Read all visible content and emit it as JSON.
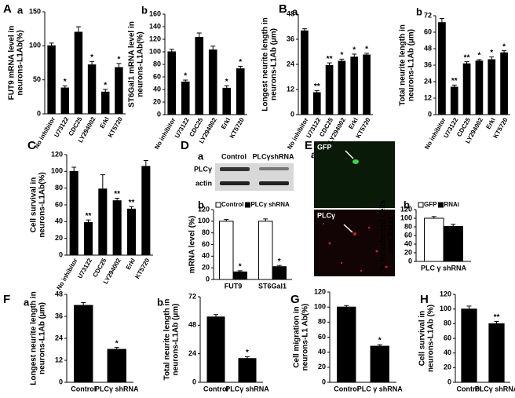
{
  "labels": [
    "A",
    "B",
    "C",
    "D",
    "E",
    "F",
    "G",
    "H"
  ],
  "blot": {
    "panel": "a",
    "columns": [
      "Control",
      "PLCγshRNA"
    ],
    "rows": [
      "PLCγ",
      "actin"
    ]
  },
  "micrograph": {
    "panel": "a",
    "channels": [
      "GFP",
      "PLCγ"
    ]
  },
  "chart_data": [
    {
      "type": "bar",
      "panel": "a",
      "ylabel": [
        "FUT9 mRNA level in",
        "neurons-L1Ab(%)"
      ],
      "categories": [
        "No inhibitor",
        "U73122",
        "CDC25",
        "LY294002",
        "Erkl",
        "KT5720"
      ],
      "values": [
        100,
        38,
        120,
        72,
        32,
        68
      ],
      "errors": [
        4,
        3,
        8,
        5,
        4,
        6
      ],
      "annotations": [
        null,
        "*",
        null,
        "*",
        "*",
        "*"
      ],
      "color": "#000000",
      "ylim": [
        0,
        150
      ],
      "yticks": [
        0,
        50,
        100,
        150
      ],
      "rotate_labels": true
    },
    {
      "type": "bar",
      "panel": "b",
      "ylabel": [
        "ST6Gal1 mRNA level in",
        "neurons-L1Ab(%)"
      ],
      "categories": [
        "No inhibitor",
        "U73122",
        "CDC25",
        "LY294002",
        "Erkl",
        "KT5720"
      ],
      "values": [
        100,
        52,
        123,
        103,
        42,
        73
      ],
      "errors": [
        4,
        3,
        7,
        6,
        4,
        4
      ],
      "annotations": [
        null,
        "*",
        null,
        null,
        "*",
        "*"
      ],
      "color": "#000000",
      "ylim": [
        0,
        160
      ],
      "yticks": [
        0,
        20,
        40,
        60,
        80,
        100,
        120,
        140,
        160
      ],
      "rotate_labels": true
    },
    {
      "type": "bar",
      "panel": "a",
      "ylabel": [
        "Longest neurite length in",
        "neurons-L1Ab (µm)"
      ],
      "categories": [
        "No inhibitor",
        "U73122",
        "CDC25",
        "LY294002",
        "Erkl",
        "KT5720"
      ],
      "values": [
        40,
        10.5,
        23.5,
        25.5,
        27.5,
        28.5
      ],
      "errors": [
        1,
        1,
        1.2,
        1,
        1.4,
        0.8
      ],
      "annotations": [
        null,
        "**",
        "**",
        "*",
        "*",
        "*"
      ],
      "color": "#000000",
      "ylim": [
        0,
        48
      ],
      "yticks": [
        0,
        12,
        24,
        36,
        48
      ],
      "rotate_labels": true
    },
    {
      "type": "bar",
      "panel": "b",
      "ylabel": [
        "Total neurite length in",
        "neurons-L1Ab (µm)"
      ],
      "categories": [
        "No inhibitor",
        "U73122",
        "CDC25",
        "LY294002",
        "Erkl",
        "KT5720"
      ],
      "values": [
        67,
        20,
        37,
        39,
        40,
        45
      ],
      "errors": [
        3,
        1.5,
        1.5,
        1,
        2,
        1.5
      ],
      "annotations": [
        null,
        "**",
        "**",
        "*",
        "*",
        "*"
      ],
      "color": "#000000",
      "ylim": [
        0,
        72
      ],
      "yticks": [
        0,
        12,
        24,
        36,
        48,
        60,
        72
      ],
      "rotate_labels": true
    },
    {
      "type": "bar",
      "ylabel": [
        "Cell survival in",
        "neurons-L1Ab(%)"
      ],
      "categories": [
        "No inhibitor",
        "U73122",
        "CDC25",
        "LY294002",
        "Erkl",
        "KT5720"
      ],
      "values": [
        100,
        39,
        79,
        65,
        55,
        106
      ],
      "errors": [
        5,
        3,
        17,
        3,
        3,
        7
      ],
      "annotations": [
        null,
        "**",
        null,
        "**",
        "**",
        null
      ],
      "color": "#000000",
      "ylim": [
        0,
        120
      ],
      "yticks": [
        0,
        20,
        40,
        60,
        80,
        100,
        120
      ],
      "rotate_labels": true
    },
    {
      "type": "grouped_bar",
      "panel": "b",
      "ylabel": [
        "mRNA level (%)"
      ],
      "categories": [
        "FUT9",
        "ST6Gal1"
      ],
      "series": [
        {
          "name": "Control",
          "color": "#ffffff",
          "values": [
            100,
            100
          ],
          "errors": [
            3,
            4
          ],
          "annotations": [
            null,
            null
          ]
        },
        {
          "name": "PLCγ shRNA",
          "color": "#000000",
          "values": [
            13,
            22
          ],
          "errors": [
            2,
            2
          ],
          "annotations": [
            "*",
            "*"
          ]
        }
      ],
      "ylim": [
        0,
        120
      ],
      "yticks": [
        0,
        20,
        40,
        60,
        80,
        100,
        120
      ],
      "legend": true
    },
    {
      "type": "grouped_bar",
      "panel": "b",
      "ylabel": [
        "% transfected cells",
        "with RNAi"
      ],
      "categories": [
        "PLC γ shRNA"
      ],
      "series": [
        {
          "name": "GFP",
          "color": "#ffffff",
          "values": [
            100
          ],
          "errors": [
            4
          ],
          "annotations": [
            null
          ]
        },
        {
          "name": "RNAi",
          "color": "#000000",
          "values": [
            81
          ],
          "errors": [
            5
          ],
          "annotations": [
            null
          ]
        }
      ],
      "ylim": [
        0,
        120
      ],
      "yticks": [
        0,
        20,
        40,
        60,
        80,
        100,
        120
      ],
      "legend": true
    },
    {
      "type": "bar",
      "panel": "a",
      "ylabel": [
        "Longest neurite length in",
        "neurons-L1Ab (µm)"
      ],
      "categories": [
        "Control",
        "PLCγ shRNA"
      ],
      "values": [
        42,
        18
      ],
      "errors": [
        1.5,
        1
      ],
      "annotations": [
        null,
        "*"
      ],
      "color": "#000000",
      "ylim": [
        0,
        48
      ],
      "yticks": [
        0,
        12,
        24,
        36,
        48
      ]
    },
    {
      "type": "bar",
      "panel": "b",
      "ylabel": [
        "Total neurite length in",
        "neurons-L1Ab (µm)"
      ],
      "categories": [
        "Control",
        "PLCγ shRNA"
      ],
      "values": [
        55,
        20
      ],
      "errors": [
        2,
        1.5
      ],
      "annotations": [
        null,
        "*"
      ],
      "color": "#000000",
      "ylim": [
        0,
        72
      ],
      "yticks": [
        0,
        24,
        48,
        72
      ]
    },
    {
      "type": "bar",
      "ylabel": [
        "Cell migration in",
        "neurons-L1 Ab(%)"
      ],
      "categories": [
        "Control",
        "PLC γ shRNA"
      ],
      "values": [
        100,
        48
      ],
      "errors": [
        2,
        2
      ],
      "annotations": [
        null,
        "*"
      ],
      "color": "#000000",
      "ylim": [
        0,
        120
      ],
      "yticks": [
        0,
        20,
        40,
        60,
        80,
        100,
        120
      ]
    },
    {
      "type": "bar",
      "ylabel": [
        "Cell survival in",
        "neurons-L1Ab (%)"
      ],
      "categories": [
        "Control",
        "PLCγ shRNA"
      ],
      "values": [
        100,
        80
      ],
      "errors": [
        4,
        3
      ],
      "annotations": [
        null,
        "**"
      ],
      "color": "#000000",
      "ylim": [
        0,
        120
      ],
      "yticks": [
        0,
        20,
        40,
        60,
        80,
        100,
        120
      ]
    }
  ]
}
